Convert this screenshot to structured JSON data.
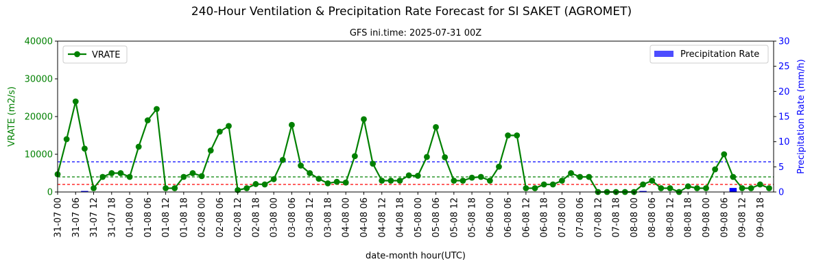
{
  "chart_data": {
    "type": "line",
    "title": "240-Hour Ventilation & Precipitation Rate Forecast for SI SAKET (AGROMET)",
    "subtitle": "GFS ini.time: 2025-07-31 00Z",
    "xlabel": "date-month hour(UTC)",
    "ylabel_left": "VRATE (m2/s)",
    "ylabel_right": "Precipitation Rate (mm/h)",
    "ylim_left": [
      0,
      40000
    ],
    "ylim_right": [
      0,
      30
    ],
    "yticks_left": [
      "0",
      "10000",
      "20000",
      "30000",
      "40000"
    ],
    "yticks_right": [
      "0",
      "5",
      "10",
      "15",
      "20",
      "25",
      "30"
    ],
    "x_start_index": 0,
    "x_end_index": 79.5,
    "x_tick_every": 2,
    "x_ticks": [
      "31-07 00",
      "31-07 06",
      "31-07 12",
      "31-07 18",
      "01-08 00",
      "01-08 06",
      "01-08 12",
      "01-08 18",
      "02-08 00",
      "02-08 06",
      "02-08 12",
      "02-08 18",
      "03-08 00",
      "03-08 06",
      "03-08 12",
      "03-08 18",
      "04-08 00",
      "04-08 06",
      "04-08 12",
      "04-08 18",
      "05-08 00",
      "05-08 06",
      "05-08 12",
      "05-08 18",
      "06-08 00",
      "06-08 06",
      "06-08 12",
      "06-08 18",
      "07-08 00",
      "07-08 06",
      "07-08 12",
      "07-08 18",
      "08-08 00",
      "08-08 06",
      "08-08 12",
      "08-08 18",
      "09-08 00",
      "09-08 06",
      "09-08 12",
      "09-08 18"
    ],
    "legend_left": {
      "label": "VRATE",
      "position": "upper-left"
    },
    "legend_right": {
      "label": "Precipitation Rate",
      "position": "upper-right"
    },
    "grid": false,
    "series": [
      {
        "name": "VRATE",
        "axis": "left",
        "color": "#008000",
        "style": "line-with-circles",
        "values": [
          4700,
          14000,
          24000,
          11500,
          1000,
          4000,
          5000,
          5000,
          4000,
          12000,
          19000,
          22000,
          1000,
          1000,
          4000,
          5000,
          4200,
          11000,
          16000,
          17500,
          500,
          1000,
          2100,
          2000,
          3400,
          8500,
          17800,
          7000,
          5000,
          3500,
          2300,
          2700,
          2500,
          9500,
          19300,
          7500,
          3000,
          3000,
          3000,
          4400,
          4300,
          9300,
          17200,
          9200,
          3000,
          3000,
          3800,
          4000,
          3000,
          6700,
          15000,
          15000,
          1000,
          1000,
          2000,
          2000,
          3000,
          5000,
          4000,
          4000,
          0,
          0,
          0,
          0,
          0,
          2000,
          3000,
          1000,
          1000,
          0,
          1500,
          1000,
          1000,
          6000,
          10000,
          4000,
          1000,
          1000,
          2000,
          1000
        ]
      },
      {
        "name": "Precipitation Rate",
        "axis": "right",
        "color": "#0000ff",
        "style": "bar",
        "values": [
          0,
          0,
          0,
          0.2,
          0,
          0,
          0,
          0,
          0,
          0,
          0,
          0,
          0,
          0,
          0,
          0,
          0,
          0,
          0,
          0,
          0,
          0,
          0,
          0,
          0,
          0,
          0,
          0,
          0,
          0,
          0,
          0,
          0,
          0,
          0,
          0,
          0,
          0,
          0,
          0,
          0,
          0,
          0,
          0,
          0,
          0,
          0,
          0,
          0,
          0,
          0,
          0,
          0,
          0,
          0,
          0,
          0,
          0,
          0,
          0,
          0,
          0,
          0,
          0,
          0,
          0.2,
          0,
          0,
          0,
          0,
          0,
          0,
          0,
          0,
          0,
          0.8,
          0,
          0,
          0,
          0,
          0,
          0,
          0,
          0,
          0
        ]
      }
    ],
    "reference_lines": [
      {
        "axis": "right",
        "value": 6,
        "color": "#0000ff",
        "style": "dashed"
      },
      {
        "axis": "left",
        "value": 4000,
        "color": "#008000",
        "style": "dashed"
      },
      {
        "axis": "left",
        "value": 2000,
        "color": "#ff0000",
        "style": "dashed"
      }
    ],
    "colors": {
      "vrate": "#008000",
      "precip": "#0000ff",
      "precip_legend": "#4d4dff",
      "left_axis_text": "#008000",
      "right_axis_text": "#0000ff"
    }
  }
}
